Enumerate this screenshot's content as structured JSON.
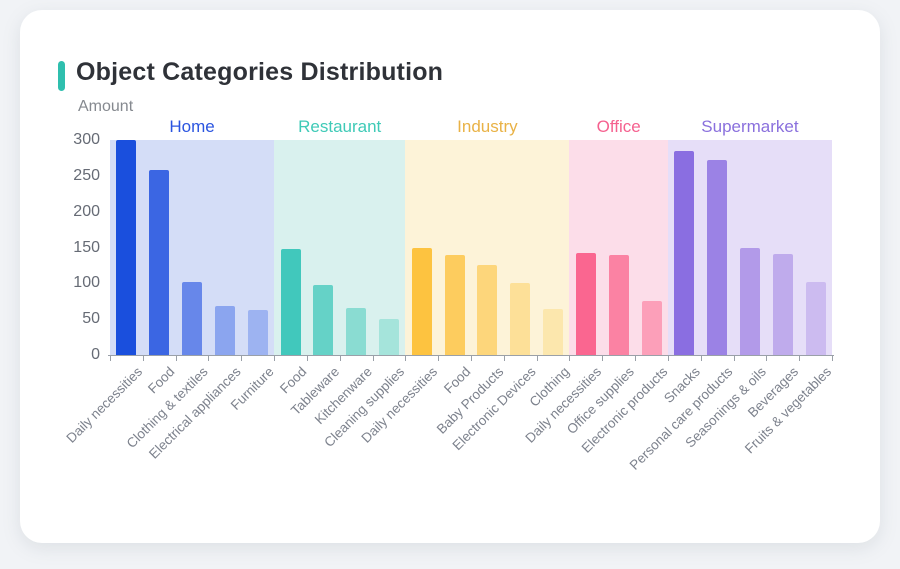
{
  "window": {
    "background": "#f1f3f6"
  },
  "card": {
    "title": "Object Categories Distribution",
    "accent_color": "#2fbfae"
  },
  "chart_data": {
    "type": "bar",
    "title": "Object Categories Distribution",
    "xlabel": "",
    "ylabel": "Amount",
    "ylim": [
      0,
      300
    ],
    "yticks": [
      "300",
      "250",
      "200",
      "150",
      "100",
      "50",
      "0"
    ],
    "grid": false,
    "legend_position": "none",
    "axis_color": "#9aa0a8",
    "groups": [
      {
        "name": "Home",
        "label_color": "#2b55e0",
        "band_color": "#d4ddf7",
        "bars": [
          {
            "label": "Daily necessities",
            "value": 300,
            "color": "#1a4fdd"
          },
          {
            "label": "Food",
            "value": 258,
            "color": "#3b66e3"
          },
          {
            "label": "Clothing & textiles",
            "value": 102,
            "color": "#6787ea"
          },
          {
            "label": "Electrical appliances",
            "value": 68,
            "color": "#8ba5ef"
          },
          {
            "label": "Furniture",
            "value": 63,
            "color": "#9db3f1"
          }
        ]
      },
      {
        "name": "Restaurant",
        "label_color": "#3fcab7",
        "band_color": "#d9f1ee",
        "bars": [
          {
            "label": "Food",
            "value": 148,
            "color": "#41c8bc"
          },
          {
            "label": "Tableware",
            "value": 97,
            "color": "#65d2c7"
          },
          {
            "label": "Kitchenware",
            "value": 65,
            "color": "#8adcd2"
          },
          {
            "label": "Cleaning supplies",
            "value": 50,
            "color": "#a5e4db"
          }
        ]
      },
      {
        "name": "Industry",
        "label_color": "#e9b246",
        "band_color": "#fdf3d8",
        "bars": [
          {
            "label": "Daily necessities",
            "value": 150,
            "color": "#fdc340"
          },
          {
            "label": "Food",
            "value": 139,
            "color": "#fdcc5e"
          },
          {
            "label": "Baby Products",
            "value": 126,
            "color": "#fdd67b"
          },
          {
            "label": "Electronic Devices",
            "value": 100,
            "color": "#fde098"
          },
          {
            "label": "Clothing",
            "value": 64,
            "color": "#fce7ad"
          }
        ]
      },
      {
        "name": "Office",
        "label_color": "#f5618f",
        "band_color": "#fcdde9",
        "bars": [
          {
            "label": "Daily necessities",
            "value": 143,
            "color": "#fa6690"
          },
          {
            "label": "Office supplies",
            "value": 139,
            "color": "#fb82a3"
          },
          {
            "label": "Electronic products",
            "value": 75,
            "color": "#fc9fb9"
          }
        ]
      },
      {
        "name": "Supermarket",
        "label_color": "#8a70dd",
        "band_color": "#e6def8",
        "bars": [
          {
            "label": "Snacks",
            "value": 285,
            "color": "#8a6ee1"
          },
          {
            "label": "Personal care products",
            "value": 272,
            "color": "#9b82e5"
          },
          {
            "label": "Seasonings & oils",
            "value": 149,
            "color": "#b29ae9"
          },
          {
            "label": "Beverages",
            "value": 141,
            "color": "#bfabec"
          },
          {
            "label": "Fruits & vegetables",
            "value": 102,
            "color": "#ccbbf0"
          }
        ]
      }
    ]
  }
}
